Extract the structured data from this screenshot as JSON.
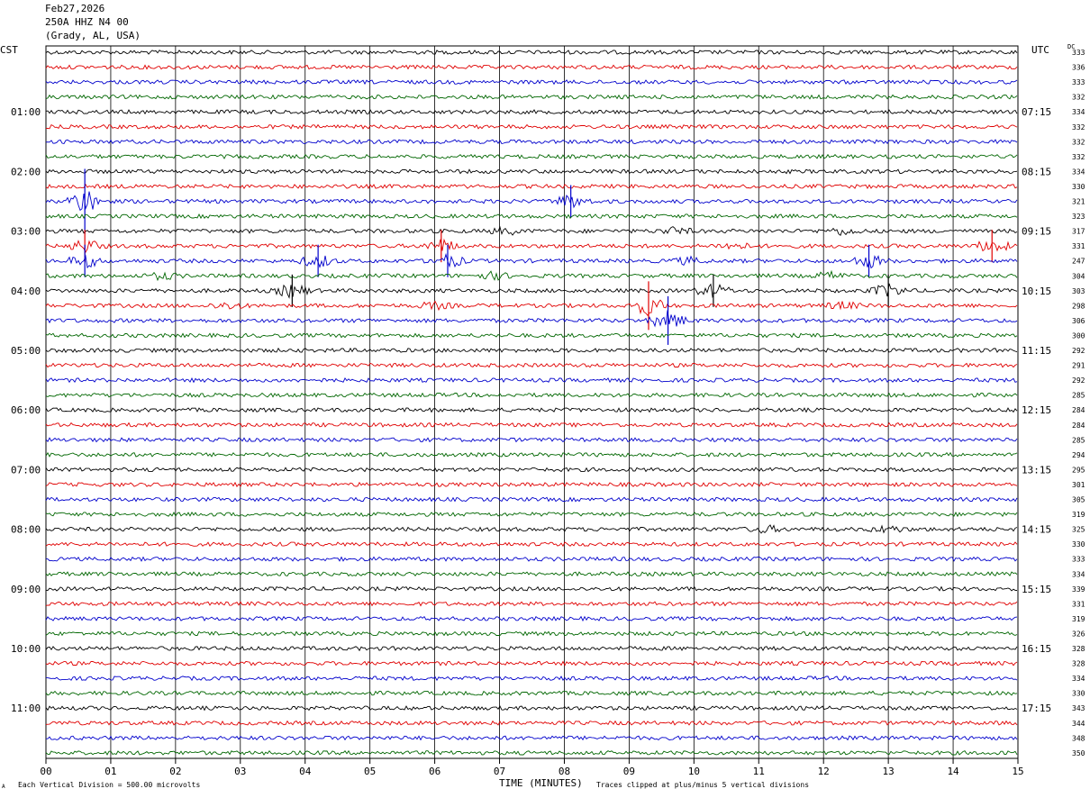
{
  "header": {
    "date": "Feb27,2026",
    "station": "250A HHZ N4 00",
    "location": "(Grady, AL, USA)"
  },
  "timezones": {
    "left": "CST",
    "right": "UTC"
  },
  "dc_label": "DC",
  "corner_mark": "A",
  "footer": {
    "scale_note": "Each Vertical Division =  500.00 microvolts",
    "clip_note": "Traces clipped at plus/minus 5 vertical divisions"
  },
  "colors": [
    "#000000",
    "#e00000",
    "#0000cc",
    "#006600"
  ],
  "chart_data": {
    "type": "line",
    "xlabel": "TIME (MINUTES)",
    "x_ticks": [
      "00",
      "01",
      "02",
      "03",
      "04",
      "05",
      "06",
      "07",
      "08",
      "09",
      "10",
      "11",
      "12",
      "13",
      "14",
      "15"
    ],
    "xlim": [
      0,
      15
    ],
    "grid": "vertical",
    "minutes_per_trace": 15,
    "trace_count": 48,
    "left_hour_labels": [
      "01:00",
      "02:00",
      "03:00",
      "04:00",
      "05:00",
      "06:00",
      "07:00",
      "08:00",
      "09:00",
      "10:00",
      "11:00"
    ],
    "right_hour_labels": [
      "07:15",
      "08:15",
      "09:15",
      "10:15",
      "11:15",
      "12:15",
      "13:15",
      "14:15",
      "15:15",
      "16:15",
      "17:15"
    ],
    "dc_offsets": [
      333,
      336,
      333,
      332,
      334,
      332,
      332,
      332,
      334,
      330,
      321,
      323,
      317,
      331,
      247,
      304,
      303,
      298,
      306,
      300,
      292,
      291,
      292,
      285,
      284,
      284,
      285,
      294,
      295,
      301,
      305,
      319,
      325,
      330,
      333,
      334,
      339,
      331,
      319,
      326,
      328,
      328,
      334,
      330,
      343,
      344,
      348,
      350
    ],
    "events": [
      {
        "trace": 10,
        "minute": 0.6,
        "amplitude": 4
      },
      {
        "trace": 10,
        "minute": 8.1,
        "amplitude": 2
      },
      {
        "trace": 12,
        "minute": 7.1,
        "amplitude": 1
      },
      {
        "trace": 12,
        "minute": 9.7,
        "amplitude": 1
      },
      {
        "trace": 12,
        "minute": 12.3,
        "amplitude": 1
      },
      {
        "trace": 13,
        "minute": 0.6,
        "amplitude": 2
      },
      {
        "trace": 13,
        "minute": 6.1,
        "amplitude": 2
      },
      {
        "trace": 13,
        "minute": 10.6,
        "amplitude": 1
      },
      {
        "trace": 13,
        "minute": 14.6,
        "amplitude": 2
      },
      {
        "trace": 14,
        "minute": 0.6,
        "amplitude": 2
      },
      {
        "trace": 14,
        "minute": 4.2,
        "amplitude": 2
      },
      {
        "trace": 14,
        "minute": 6.2,
        "amplitude": 2
      },
      {
        "trace": 14,
        "minute": 9.9,
        "amplitude": 1
      },
      {
        "trace": 14,
        "minute": 12.7,
        "amplitude": 2
      },
      {
        "trace": 15,
        "minute": 1.8,
        "amplitude": 1
      },
      {
        "trace": 15,
        "minute": 6.9,
        "amplitude": 1
      },
      {
        "trace": 15,
        "minute": 12.1,
        "amplitude": 1
      },
      {
        "trace": 16,
        "minute": 3.8,
        "amplitude": 2
      },
      {
        "trace": 16,
        "minute": 10.3,
        "amplitude": 2
      },
      {
        "trace": 16,
        "minute": 13.0,
        "amplitude": 2
      },
      {
        "trace": 17,
        "minute": 2.8,
        "amplitude": 1
      },
      {
        "trace": 17,
        "minute": 6.0,
        "amplitude": 1
      },
      {
        "trace": 17,
        "minute": 9.3,
        "amplitude": 3
      },
      {
        "trace": 17,
        "minute": 12.3,
        "amplitude": 1
      },
      {
        "trace": 18,
        "minute": 9.6,
        "amplitude": 3
      },
      {
        "trace": 32,
        "minute": 11.1,
        "amplitude": 1
      },
      {
        "trace": 32,
        "minute": 13.0,
        "amplitude": 1
      }
    ]
  }
}
